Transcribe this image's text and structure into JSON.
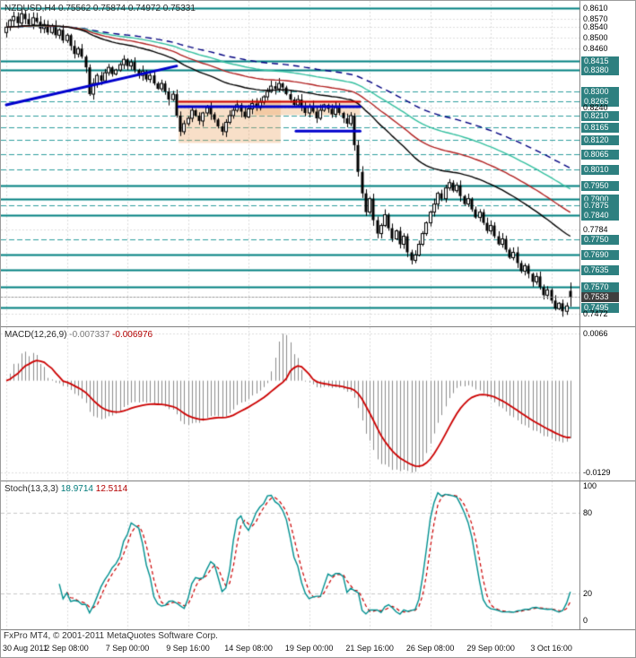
{
  "footer": "FxPro MT4, © 2001-2011 MetaQuotes Software Corp.",
  "main_chart": {
    "title": "NZDUSD,H4 0.75562 0.75874 0.74972 0.75331",
    "symbol": "NZDUSD",
    "timeframe": "H4",
    "ohlc": {
      "open": "0.75562",
      "high": "0.75874",
      "low": "0.74972",
      "close": "0.75331"
    },
    "current_price_label": "0.7533",
    "price_labels": [
      {
        "text": "0.8610",
        "value": 0.861,
        "label": "plain",
        "line": "solid"
      },
      {
        "text": "0.8570",
        "value": 0.857,
        "label": "plain",
        "line": "grid"
      },
      {
        "text": "0.8540",
        "value": 0.854,
        "label": "plain",
        "line": "grid"
      },
      {
        "text": "0.8500",
        "value": 0.85,
        "label": "plain",
        "line": "grid"
      },
      {
        "text": "0.8460",
        "value": 0.846,
        "label": "plain",
        "line": "grid"
      },
      {
        "text": "0.8415",
        "value": 0.8415,
        "label": "teal",
        "line": "solid"
      },
      {
        "text": "0.8380",
        "value": 0.838,
        "label": "teal",
        "line": "solid"
      },
      {
        "text": "0.8300",
        "value": 0.83,
        "label": "teal",
        "line": "dash"
      },
      {
        "text": "0.8265",
        "value": 0.8265,
        "label": "teal",
        "line": "dash"
      },
      {
        "text": "0.8240",
        "value": 0.824,
        "label": "plain",
        "line": "grid"
      },
      {
        "text": "0.8210",
        "value": 0.821,
        "label": "teal",
        "line": "dash"
      },
      {
        "text": "0.8165",
        "value": 0.8165,
        "label": "teal",
        "line": "dash"
      },
      {
        "text": "0.8120",
        "value": 0.812,
        "label": "teal",
        "line": "dash"
      },
      {
        "text": "0.8065",
        "value": 0.8065,
        "label": "teal",
        "line": "dash"
      },
      {
        "text": "0.8010",
        "value": 0.801,
        "label": "teal",
        "line": "dash"
      },
      {
        "text": "0.7950",
        "value": 0.795,
        "label": "teal",
        "line": "solid"
      },
      {
        "text": "0.7900",
        "value": 0.79,
        "label": "teal",
        "line": "solid"
      },
      {
        "text": "0.7875",
        "value": 0.7875,
        "label": "teal",
        "line": "dash"
      },
      {
        "text": "0.7840",
        "value": 0.784,
        "label": "teal",
        "line": "solid"
      },
      {
        "text": "0.7784",
        "value": 0.7784,
        "label": "plain",
        "line": "grid"
      },
      {
        "text": "0.7750",
        "value": 0.775,
        "label": "teal",
        "line": "dash"
      },
      {
        "text": "0.7690",
        "value": 0.769,
        "label": "teal",
        "line": "solid"
      },
      {
        "text": "0.7635",
        "value": 0.7635,
        "label": "teal",
        "line": "solid"
      },
      {
        "text": "0.7570",
        "value": 0.757,
        "label": "teal",
        "line": "solid"
      },
      {
        "text": "0.7533",
        "value": 0.7533,
        "label": "current",
        "line": "bid"
      },
      {
        "text": "0.7495",
        "value": 0.7495,
        "label": "teal",
        "line": "solid"
      },
      {
        "text": "0.7472",
        "value": 0.7472,
        "label": "plain",
        "line": "grid"
      }
    ]
  },
  "macd_panel": {
    "name": "MACD(12,26,9)",
    "main_value": "-0.007337",
    "signal_value": "-0.006976",
    "axis_labels": [
      {
        "text": "0.0066",
        "value": 0.0066
      },
      {
        "text": "-0.0129",
        "value": -0.0129
      }
    ]
  },
  "stoch_panel": {
    "name": "Stoch(13,3,3)",
    "main_value": "18.9714",
    "signal_value": "12.5114",
    "axis_labels": [
      {
        "text": "100",
        "value": 100
      },
      {
        "text": "80",
        "value": 80
      },
      {
        "text": "20",
        "value": 20
      },
      {
        "text": "0",
        "value": 0
      }
    ],
    "level_lines": [
      20,
      80
    ]
  },
  "time_axis": [
    {
      "text": "30 Aug 2011",
      "bar": 0
    },
    {
      "text": "2 Sep 08:00",
      "bar": 16
    },
    {
      "text": "7 Sep 00:00",
      "bar": 32
    },
    {
      "text": "9 Sep 16:00",
      "bar": 48
    },
    {
      "text": "14 Sep 08:00",
      "bar": 64
    },
    {
      "text": "19 Sep 00:00",
      "bar": 80
    },
    {
      "text": "21 Sep 16:00",
      "bar": 96
    },
    {
      "text": "26 Sep 08:00",
      "bar": 112
    },
    {
      "text": "29 Sep 00:00",
      "bar": 128
    },
    {
      "text": "3 Oct 16:00",
      "bar": 144
    }
  ],
  "chart_data": {
    "type": "candlestick",
    "symbol": "NZDUSD",
    "timeframe": "H4",
    "date_range": [
      "30 Aug 2011",
      "3 Oct 16:00"
    ],
    "price_range_visible": {
      "top": 0.8638,
      "bottom": 0.7424
    },
    "first_open": 0.852,
    "closes": [
      0.854,
      0.8565,
      0.858,
      0.8555,
      0.859,
      0.857,
      0.855,
      0.8575,
      0.856,
      0.8535,
      0.855,
      0.852,
      0.8545,
      0.851,
      0.853,
      0.849,
      0.851,
      0.847,
      0.844,
      0.846,
      0.843,
      0.839,
      0.829,
      0.833,
      0.836,
      0.834,
      0.837,
      0.839,
      0.8365,
      0.838,
      0.84,
      0.842,
      0.8395,
      0.841,
      0.838,
      0.836,
      0.8375,
      0.8345,
      0.836,
      0.833,
      0.831,
      0.833,
      0.83,
      0.827,
      0.829,
      0.821,
      0.815,
      0.818,
      0.82,
      0.823,
      0.821,
      0.819,
      0.822,
      0.824,
      0.8215,
      0.8195,
      0.817,
      0.815,
      0.8185,
      0.821,
      0.823,
      0.825,
      0.8225,
      0.8205,
      0.8235,
      0.8255,
      0.824,
      0.826,
      0.828,
      0.83,
      0.832,
      0.831,
      0.833,
      0.8315,
      0.829,
      0.827,
      0.825,
      0.827,
      0.824,
      0.822,
      0.8245,
      0.8225,
      0.82,
      0.823,
      0.825,
      0.8235,
      0.8215,
      0.824,
      0.822,
      0.82,
      0.818,
      0.821,
      0.81,
      0.8,
      0.792,
      0.785,
      0.79,
      0.782,
      0.777,
      0.78,
      0.784,
      0.779,
      0.775,
      0.778,
      0.773,
      0.776,
      0.77,
      0.767,
      0.769,
      0.773,
      0.777,
      0.781,
      0.785,
      0.788,
      0.792,
      0.79,
      0.794,
      0.796,
      0.793,
      0.795,
      0.791,
      0.788,
      0.79,
      0.786,
      0.783,
      0.785,
      0.781,
      0.778,
      0.78,
      0.776,
      0.773,
      0.775,
      0.771,
      0.768,
      0.77,
      0.766,
      0.763,
      0.765,
      0.762,
      0.759,
      0.761,
      0.757,
      0.754,
      0.756,
      0.752,
      0.749,
      0.751,
      0.748,
      0.75,
      0.7533
    ],
    "last_bar": {
      "open": 0.75562,
      "high": 0.75874,
      "low": 0.74972,
      "close": 0.75331
    },
    "indicators": {
      "macd": {
        "params": [
          12,
          26,
          9
        ],
        "last_main": -0.007337,
        "last_signal": -0.006976,
        "axis_max": 0.0066,
        "axis_min": -0.0129
      },
      "stochastic": {
        "params": [
          13,
          3,
          3
        ],
        "last_main": 18.9714,
        "last_signal": 12.5114,
        "levels": [
          20,
          80
        ]
      },
      "moving_averages": [
        {
          "period": 144,
          "color": "#000080",
          "dash": true
        },
        {
          "period": 110,
          "color": "#35C0A0",
          "dash": false
        },
        {
          "period": 80,
          "color": "#B22222",
          "dash": false
        },
        {
          "period": 55,
          "color": "#000000",
          "dash": false
        }
      ]
    },
    "annotations": {
      "trendline": {
        "from_bar": 0,
        "from_price": 0.825,
        "to_bar": 45,
        "to_price": 0.8395,
        "color": "#0000CD",
        "width": 3
      },
      "hlines": [
        {
          "price": 0.8262,
          "from_bar": 46,
          "to_bar": 93,
          "color": "#CC0000",
          "width": 2
        },
        {
          "price": 0.8243,
          "from_bar": 46,
          "to_bar": 93,
          "color": "#0000CD",
          "width": 3
        },
        {
          "price": 0.8152,
          "from_bar": 77,
          "to_bar": 93,
          "color": "#0000CD",
          "width": 3
        }
      ],
      "boxes": [
        {
          "from_bar": 46,
          "to_bar": 72,
          "top": 0.8268,
          "bottom": 0.8108
        },
        {
          "from_bar": 66,
          "to_bar": 93,
          "top": 0.8268,
          "bottom": 0.8212
        }
      ]
    }
  },
  "colors": {
    "background": "#FFFFFF",
    "grid": "#DCDCDC",
    "panel_border": "#808080",
    "level_solid": "#008080",
    "level_dash": "#2E9E9E",
    "teal_label_bg": "#2E8080",
    "current_label_bg": "#3F3F3F",
    "bull": "#FFFFFF",
    "bear": "#000000",
    "candle_outline": "#000000",
    "macd_hist": "#8C8C8C",
    "macd_signal": "#CC0000",
    "stoch_main": "#009090",
    "stoch_signal": "#CC0000",
    "box_fill": "rgba(236,164,96,0.35)",
    "bid_line": "#999999",
    "indicator_level": "#C8C8C8"
  }
}
